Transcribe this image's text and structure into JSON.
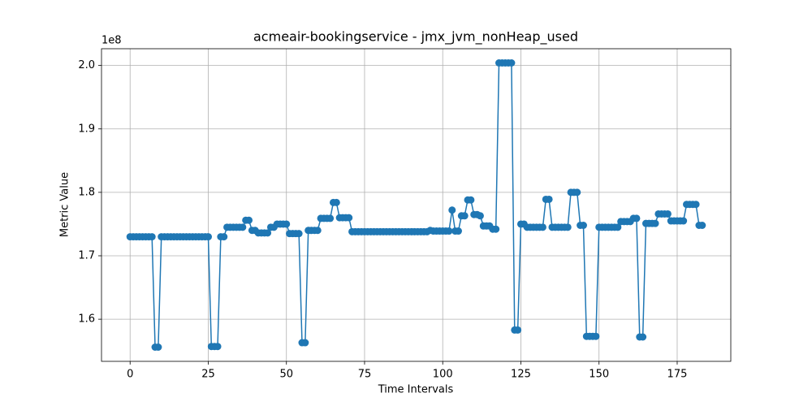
{
  "chart_data": {
    "type": "line",
    "title": "acmeair-bookingservice - jmx_jvm_nonHeap_used",
    "xlabel": "Time Intervals",
    "ylabel": "Metric Value",
    "y_offset_label": "1e8",
    "color": "#1f77b4",
    "grid": true,
    "xlim": [
      -9.15,
      192.15
    ],
    "xticks": [
      0,
      25,
      50,
      75,
      100,
      125,
      150,
      175
    ],
    "ylim": [
      1.5336,
      2.0264
    ],
    "yticks": [
      1.6,
      1.7,
      1.8,
      1.9,
      {
        "value": 2,
        "label": "2.0"
      }
    ],
    "x": [
      0,
      1,
      2,
      3,
      4,
      5,
      6,
      7,
      8,
      9,
      10,
      11,
      12,
      13,
      14,
      15,
      16,
      17,
      18,
      19,
      20,
      21,
      22,
      23,
      24,
      25,
      26,
      27,
      28,
      29,
      30,
      31,
      32,
      33,
      34,
      35,
      36,
      37,
      38,
      39,
      40,
      41,
      42,
      43,
      44,
      45,
      46,
      47,
      48,
      49,
      50,
      51,
      52,
      53,
      54,
      55,
      56,
      57,
      58,
      59,
      60,
      61,
      62,
      63,
      64,
      65,
      66,
      67,
      68,
      69,
      70,
      71,
      72,
      73,
      74,
      75,
      76,
      77,
      78,
      79,
      80,
      81,
      82,
      83,
      84,
      85,
      86,
      87,
      88,
      89,
      90,
      91,
      92,
      93,
      94,
      95,
      96,
      97,
      98,
      99,
      100,
      101,
      102,
      103,
      104,
      105,
      106,
      107,
      108,
      109,
      110,
      111,
      112,
      113,
      114,
      115,
      116,
      117,
      118,
      119,
      120,
      121,
      122,
      123,
      124,
      125,
      126,
      127,
      128,
      129,
      130,
      131,
      132,
      133,
      134,
      135,
      136,
      137,
      138,
      139,
      140,
      141,
      142,
      143,
      144,
      145,
      146,
      147,
      148,
      149,
      150,
      151,
      152,
      153,
      154,
      155,
      156,
      157,
      158,
      159,
      160,
      161,
      162,
      163,
      164,
      165,
      166,
      167,
      168,
      169,
      170,
      171,
      172,
      173,
      174,
      175,
      176,
      177,
      178,
      179,
      180,
      181,
      182,
      183
    ],
    "values": [
      1.73,
      1.73,
      1.73,
      1.73,
      1.73,
      1.73,
      1.73,
      1.73,
      1.556,
      1.556,
      1.73,
      1.73,
      1.73,
      1.73,
      1.73,
      1.73,
      1.73,
      1.73,
      1.73,
      1.73,
      1.73,
      1.73,
      1.73,
      1.73,
      1.73,
      1.73,
      1.557,
      1.557,
      1.557,
      1.73,
      1.73,
      1.745,
      1.745,
      1.745,
      1.745,
      1.745,
      1.745,
      1.756,
      1.756,
      1.74,
      1.74,
      1.736,
      1.736,
      1.736,
      1.736,
      1.745,
      1.745,
      1.75,
      1.75,
      1.75,
      1.75,
      1.735,
      1.735,
      1.735,
      1.735,
      1.563,
      1.563,
      1.74,
      1.74,
      1.74,
      1.74,
      1.759,
      1.759,
      1.759,
      1.759,
      1.784,
      1.784,
      1.76,
      1.76,
      1.76,
      1.76,
      1.738,
      1.738,
      1.738,
      1.738,
      1.738,
      1.738,
      1.738,
      1.738,
      1.738,
      1.738,
      1.738,
      1.738,
      1.738,
      1.738,
      1.738,
      1.738,
      1.738,
      1.738,
      1.738,
      1.738,
      1.738,
      1.738,
      1.738,
      1.738,
      1.738,
      1.74,
      1.739,
      1.739,
      1.739,
      1.739,
      1.739,
      1.739,
      1.772,
      1.739,
      1.739,
      1.763,
      1.763,
      1.788,
      1.788,
      1.765,
      1.765,
      1.763,
      1.747,
      1.747,
      1.747,
      1.742,
      1.742,
      2.004,
      2.004,
      2.004,
      2.004,
      2.004,
      1.583,
      1.583,
      1.75,
      1.75,
      1.745,
      1.745,
      1.745,
      1.745,
      1.745,
      1.745,
      1.789,
      1.789,
      1.745,
      1.745,
      1.745,
      1.745,
      1.745,
      1.745,
      1.8,
      1.8,
      1.8,
      1.748,
      1.748,
      1.573,
      1.573,
      1.573,
      1.573,
      1.745,
      1.745,
      1.745,
      1.745,
      1.745,
      1.745,
      1.745,
      1.754,
      1.754,
      1.754,
      1.754,
      1.759,
      1.759,
      1.572,
      1.572,
      1.751,
      1.751,
      1.751,
      1.751,
      1.766,
      1.766,
      1.766,
      1.766,
      1.755,
      1.755,
      1.755,
      1.755,
      1.755,
      1.781,
      1.781,
      1.781,
      1.781,
      1.748,
      1.748
    ]
  }
}
